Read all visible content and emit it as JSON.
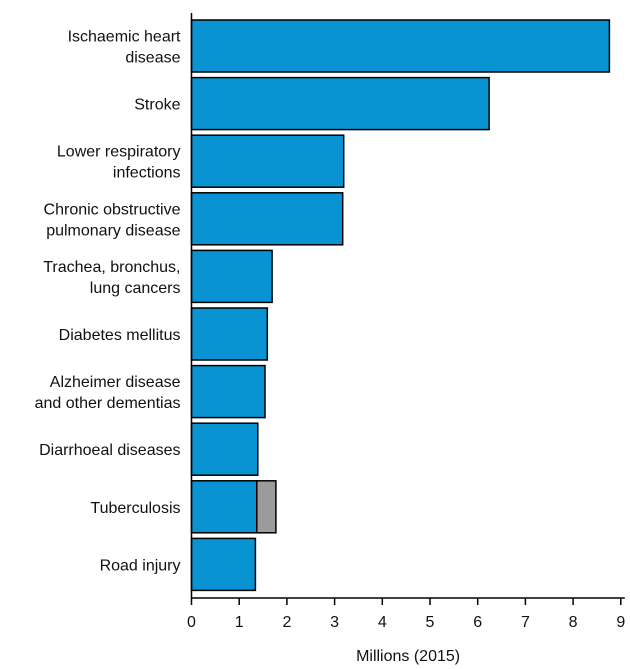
{
  "chart_data": {
    "type": "bar",
    "orientation": "horizontal",
    "stacked": true,
    "categories": [
      [
        "Ischaemic heart",
        "disease"
      ],
      [
        "Stroke"
      ],
      [
        "Lower respiratory",
        "infections"
      ],
      [
        "Chronic obstructive",
        "pulmonary disease"
      ],
      [
        "Trachea, bronchus,",
        "lung cancers"
      ],
      [
        "Diabetes mellitus"
      ],
      [
        "Alzheimer disease",
        "and other dementias"
      ],
      [
        "Diarrhoeal diseases"
      ],
      [
        "Tuberculosis"
      ],
      [
        "Road injury"
      ]
    ],
    "series": [
      {
        "values": [
          8.76,
          6.24,
          3.19,
          3.17,
          1.69,
          1.59,
          1.54,
          1.39,
          1.37,
          1.34
        ],
        "color": "#0a93d2"
      },
      {
        "values": [
          0,
          0,
          0,
          0,
          0,
          0,
          0,
          0,
          0.4,
          0
        ],
        "color": "#9b9b9b"
      }
    ],
    "xlabel": "Millions (2015)",
    "ylabel": "",
    "title": "",
    "xlim": [
      0,
      9
    ],
    "xticks": [
      "0",
      "1",
      "2",
      "3",
      "4",
      "5",
      "6",
      "7",
      "8",
      "9"
    ],
    "grid": false,
    "legend": "none"
  }
}
